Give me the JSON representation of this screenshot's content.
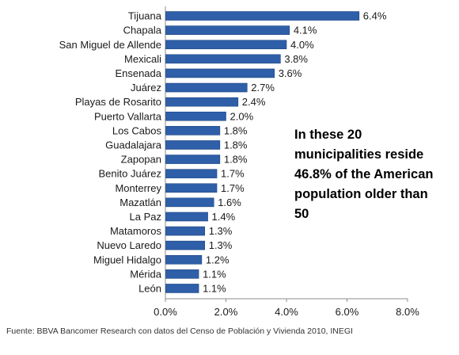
{
  "chart_data": {
    "type": "bar",
    "orientation": "horizontal",
    "categories": [
      "Tijuana",
      "Chapala",
      "San Miguel de Allende",
      "Mexicali",
      "Ensenada",
      "Juárez",
      "Playas de Rosarito",
      "Puerto Vallarta",
      "Los Cabos",
      "Guadalajara",
      "Zapopan",
      "Benito Juárez",
      "Monterrey",
      "Mazatlán",
      "La Paz",
      "Matamoros",
      "Nuevo Laredo",
      "Miguel Hidalgo",
      "Mérida",
      "León"
    ],
    "values": [
      6.4,
      4.1,
      4.0,
      3.8,
      3.6,
      2.7,
      2.4,
      2.0,
      1.8,
      1.8,
      1.8,
      1.7,
      1.7,
      1.6,
      1.4,
      1.3,
      1.3,
      1.2,
      1.1,
      1.1
    ],
    "value_labels": [
      "6.4%",
      "4.1%",
      "4.0%",
      "3.8%",
      "3.6%",
      "2.7%",
      "2.4%",
      "2.0%",
      "1.8%",
      "1.8%",
      "1.8%",
      "1.7%",
      "1.7%",
      "1.6%",
      "1.4%",
      "1.3%",
      "1.3%",
      "1.2%",
      "1.1%",
      "1.1%"
    ],
    "xlim": [
      0,
      8
    ],
    "x_ticks": [
      "0.0%",
      "2.0%",
      "4.0%",
      "6.0%",
      "8.0%"
    ],
    "title": "",
    "xlabel": "",
    "ylabel": "",
    "grid": false,
    "bar_color": "#2e5fa8",
    "bar_edge_color": "#1f4583"
  },
  "annotation": "In these 20 municipalities reside 46.8% of the American population older than 50",
  "source": "Fuente: BBVA Bancomer Research con datos del Censo de Población y Vivienda 2010, INEGI"
}
